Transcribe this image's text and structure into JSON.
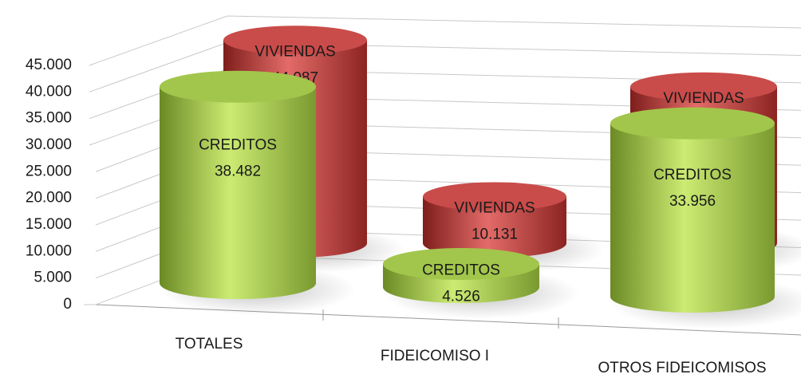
{
  "chart_data": {
    "type": "cylinder-bar",
    "categories": [
      "TOTALES",
      "FIDEICOMISO I",
      "OTROS FIDEICOMISOS"
    ],
    "series": [
      {
        "name": "VIVIENDAS",
        "color": "#c0504d",
        "values": [
          44087,
          10131,
          33956
        ],
        "value_labels": [
          "44.087",
          "10.131",
          "33.956"
        ]
      },
      {
        "name": "CREDITOS",
        "color": "#9bbb59",
        "values": [
          38482,
          4526,
          33956
        ],
        "value_labels": [
          "38.482",
          "4.526",
          "33.956"
        ]
      }
    ],
    "ylim": [
      0,
      45000
    ],
    "yticks": [
      0,
      {
        "value": 5000,
        "label": "5.000"
      },
      {
        "value": 10000,
        "label": "10.000"
      },
      {
        "value": 15000,
        "label": "15.000"
      },
      {
        "value": 20000,
        "label": "20.000"
      },
      {
        "value": 25000,
        "label": "25.000"
      },
      {
        "value": 30000,
        "label": "30.000"
      },
      {
        "value": 35000,
        "label": "35.000"
      },
      {
        "value": 40000,
        "label": "40.000"
      },
      {
        "value": 45000,
        "label": "45.000"
      }
    ],
    "grid": true
  }
}
